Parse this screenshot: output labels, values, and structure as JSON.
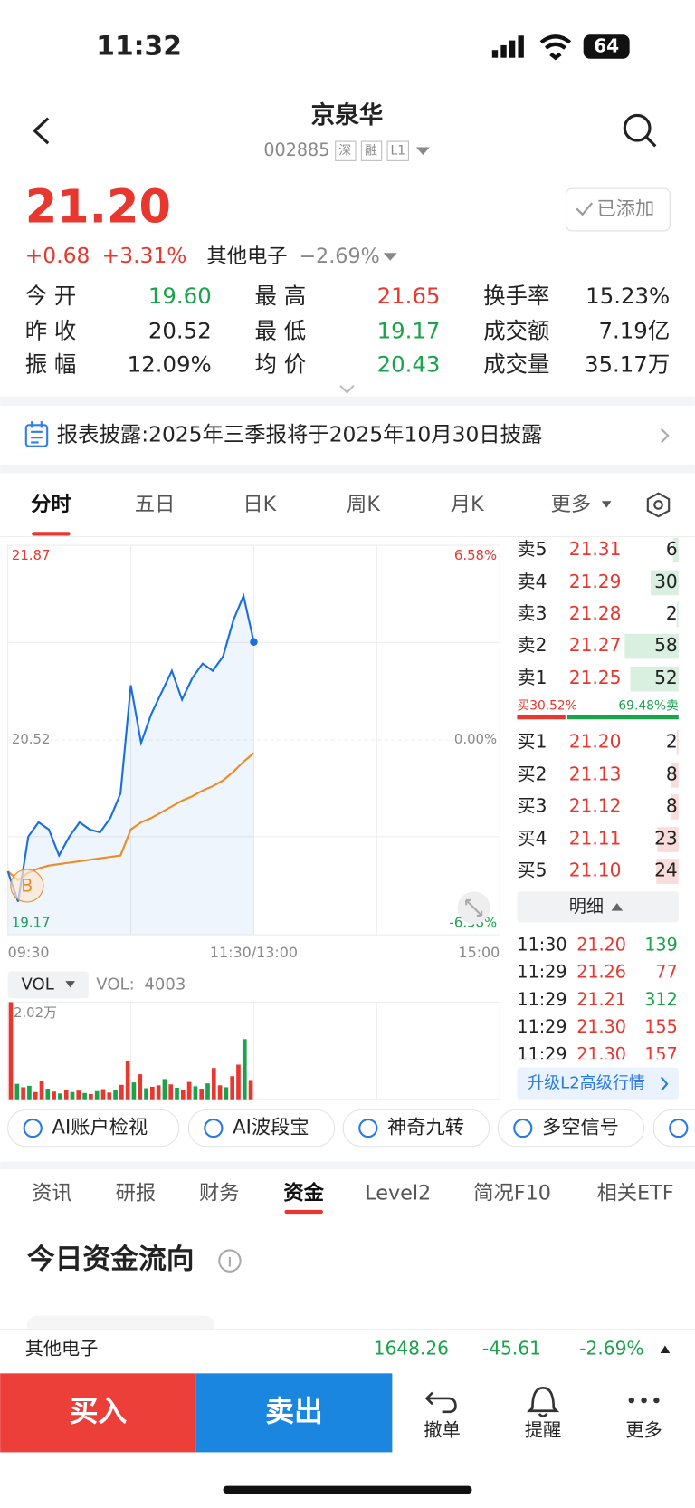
{
  "status_bar": {
    "time": "11:32",
    "battery": "64"
  },
  "header": {
    "title": "京泉华",
    "code": "002885",
    "badges": [
      "深",
      "融",
      "L1"
    ]
  },
  "quote": {
    "price": "21.20",
    "change": "+0.68",
    "change_pct": "+3.31%",
    "sector": "其他电子",
    "sector_change": "−2.69%",
    "watch_button": "已添加"
  },
  "stats": [
    [
      {
        "label": "今 开",
        "value": "19.60",
        "color": "#1aa34a"
      },
      {
        "label": "最 高",
        "value": "21.65",
        "color": "#e8372f"
      },
      {
        "label": "换手率",
        "value": "15.23%",
        "color": "#222222"
      }
    ],
    [
      {
        "label": "昨 收",
        "value": "20.52",
        "color": "#222222"
      },
      {
        "label": "最 低",
        "value": "19.17",
        "color": "#1aa34a"
      },
      {
        "label": "成交额",
        "value": "7.19亿",
        "color": "#222222"
      }
    ],
    [
      {
        "label": "振 幅",
        "value": "12.09%",
        "color": "#222222"
      },
      {
        "label": "均 价",
        "value": "20.43",
        "color": "#1aa34a"
      },
      {
        "label": "成交量",
        "value": "35.17万",
        "color": "#222222"
      }
    ]
  ],
  "notice": "报表披露:2025年三季报将于2025年10月30日披露",
  "chart_tabs": [
    "分时",
    "五日",
    "日K",
    "周K",
    "月K",
    "更多"
  ],
  "intraday": {
    "ylim": [
      19.17,
      21.87
    ],
    "yticks": [
      21.87,
      20.52,
      19.17
    ],
    "y2lim": [
      -6.58,
      6.58
    ],
    "y2ticks": [
      {
        "value": 6.58,
        "label": "6.58%"
      },
      {
        "value": 0,
        "label": "0.00%"
      },
      {
        "value": -6.58,
        "label": "-6.58%"
      }
    ],
    "xlim": [
      0,
      240
    ],
    "xticks": [
      {
        "value": 0,
        "label": "09:30"
      },
      {
        "value": 120,
        "label": "11:30/13:00"
      },
      {
        "value": 240,
        "label": "15:00"
      }
    ],
    "price": {
      "color": "#1a6fe0",
      "x": [
        0,
        5,
        10,
        15,
        20,
        25,
        30,
        35,
        40,
        45,
        50,
        55,
        60,
        65,
        70,
        75,
        80,
        85,
        90,
        95,
        100,
        105,
        110,
        115,
        120
      ],
      "values": [
        19.61,
        19.4,
        19.85,
        19.95,
        19.9,
        19.72,
        19.85,
        19.95,
        19.9,
        19.88,
        19.98,
        20.15,
        20.9,
        20.5,
        20.7,
        20.85,
        21.0,
        20.8,
        20.95,
        21.05,
        21.0,
        21.1,
        21.35,
        21.52,
        21.2
      ]
    },
    "average": {
      "color": "#f08a24",
      "x": [
        0,
        5,
        10,
        15,
        20,
        25,
        30,
        35,
        40,
        45,
        50,
        55,
        60,
        65,
        70,
        75,
        80,
        85,
        90,
        95,
        100,
        105,
        110,
        115,
        120
      ],
      "values": [
        19.61,
        19.55,
        19.6,
        19.63,
        19.65,
        19.66,
        19.67,
        19.68,
        19.69,
        19.7,
        19.71,
        19.72,
        19.9,
        19.95,
        19.98,
        20.02,
        20.06,
        20.1,
        20.13,
        20.17,
        20.2,
        20.24,
        20.3,
        20.37,
        20.43
      ]
    },
    "marker": "B"
  },
  "volume": {
    "selector": "VOL",
    "caption": "VOL:",
    "current": 4003,
    "ylim": [
      0,
      20200
    ],
    "yticks": [
      {
        "value": 20200,
        "label": "2.02万"
      }
    ],
    "values": [
      20200,
      3200,
      2500,
      2800,
      1500,
      3800,
      2200,
      1600,
      1200,
      2000,
      1500,
      1800,
      1300,
      1100,
      1700,
      2100,
      1400,
      1900,
      3000,
      8000,
      3500,
      5200,
      2300,
      2600,
      2900,
      4200,
      3100,
      2400,
      2000,
      3600,
      2700,
      2200,
      3300,
      6500,
      2900,
      2500,
      4800,
      7200,
      12500,
      4003
    ],
    "up": [
      true,
      false,
      true,
      false,
      true,
      true,
      false,
      true,
      false,
      true,
      false,
      true,
      false,
      true,
      false,
      true,
      true,
      false,
      true,
      true,
      false,
      true,
      false,
      true,
      true,
      false,
      true,
      false,
      true,
      true,
      false,
      true,
      false,
      true,
      true,
      false,
      true,
      true,
      false,
      true
    ]
  },
  "order_book": {
    "asks": [
      {
        "label": "卖5",
        "price": "21.31",
        "qty": 6
      },
      {
        "label": "卖4",
        "price": "21.29",
        "qty": 30
      },
      {
        "label": "卖3",
        "price": "21.28",
        "qty": 2
      },
      {
        "label": "卖2",
        "price": "21.27",
        "qty": 58
      },
      {
        "label": "卖1",
        "price": "21.25",
        "qty": 52
      }
    ],
    "ratio": {
      "buy": {
        "value": 30.52,
        "label": "买30.52%"
      },
      "sell": {
        "value": 69.48,
        "label": "69.48%卖"
      }
    },
    "bids": [
      {
        "label": "买1",
        "price": "21.20",
        "qty": 2
      },
      {
        "label": "买2",
        "price": "21.13",
        "qty": 8
      },
      {
        "label": "买3",
        "price": "21.12",
        "qty": 8
      },
      {
        "label": "买4",
        "price": "21.11",
        "qty": 23
      },
      {
        "label": "买5",
        "price": "21.10",
        "qty": 24
      }
    ]
  },
  "detail_button": "明细",
  "trades": [
    {
      "time": "11:30",
      "price": "21.20",
      "qty": "139",
      "color": "#1aa34a"
    },
    {
      "time": "11:29",
      "price": "21.26",
      "qty": "77",
      "color": "#e8372f"
    },
    {
      "time": "11:29",
      "price": "21.21",
      "qty": "312",
      "color": "#1aa34a"
    },
    {
      "time": "11:29",
      "price": "21.30",
      "qty": "155",
      "color": "#e8372f"
    },
    {
      "time": "11:29",
      "price": "21.30",
      "qty": "157",
      "color": "#e8372f"
    }
  ],
  "upgrade": "升级L2高级行情",
  "tools": [
    "AI账户检视",
    "AI波段宝",
    "神奇九转",
    "多空信号"
  ],
  "info_tabs": [
    "资讯",
    "研报",
    "财务",
    "资金",
    "Level2",
    "简况F10",
    "相关ETF"
  ],
  "fund_flow_title": "今日资金流向",
  "sector_ticker": {
    "name": "其他电子",
    "price": "1648.26",
    "change": "-45.61",
    "change_pct": "-2.69%"
  },
  "actions": {
    "buy": "买入",
    "sell": "卖出",
    "cancel": "撤单",
    "alert": "提醒",
    "more": "更多"
  }
}
